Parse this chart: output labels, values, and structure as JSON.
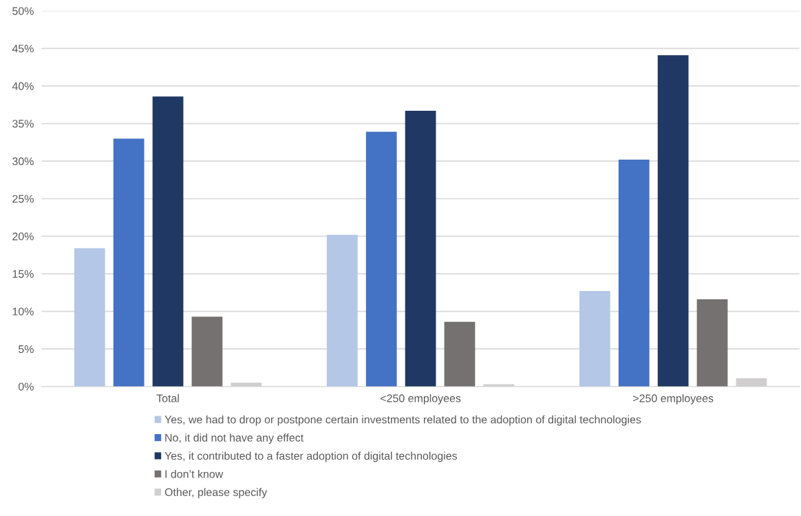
{
  "chart_data": {
    "type": "bar",
    "categories": [
      "Total",
      "<250 employees",
      ">250 employees"
    ],
    "series": [
      {
        "name": "Yes, we had to drop or postpone certain investments related to the adoption of digital technologies",
        "color": "#b4c7e7",
        "values": [
          18.4,
          20.2,
          12.7
        ]
      },
      {
        "name": "No, it did not have any effect",
        "color": "#4472c4",
        "values": [
          33.0,
          33.9,
          30.2
        ]
      },
      {
        "name": "Yes, it contributed to a faster adoption of digital technologies",
        "color": "#203864",
        "values": [
          38.6,
          36.7,
          44.1
        ]
      },
      {
        "name": "I don’t know",
        "color": "#767171",
        "values": [
          9.3,
          8.6,
          11.6
        ]
      },
      {
        "name": "Other, please specify",
        "color": "#d0cece",
        "values": [
          0.5,
          0.3,
          1.1
        ]
      }
    ],
    "ylim": [
      0,
      50
    ],
    "yticks": [
      {
        "value": 0,
        "label": "0%"
      },
      {
        "value": 5,
        "label": "5%"
      },
      {
        "value": 10,
        "label": "10%"
      },
      {
        "value": 15,
        "label": "15%"
      },
      {
        "value": 20,
        "label": "20%"
      },
      {
        "value": 25,
        "label": "25%"
      },
      {
        "value": 30,
        "label": "30%"
      },
      {
        "value": 35,
        "label": "35%"
      },
      {
        "value": 40,
        "label": "40%"
      },
      {
        "value": 45,
        "label": "45%"
      },
      {
        "value": 50,
        "label": "50%"
      }
    ],
    "grid": "y",
    "legend": "bottom"
  }
}
